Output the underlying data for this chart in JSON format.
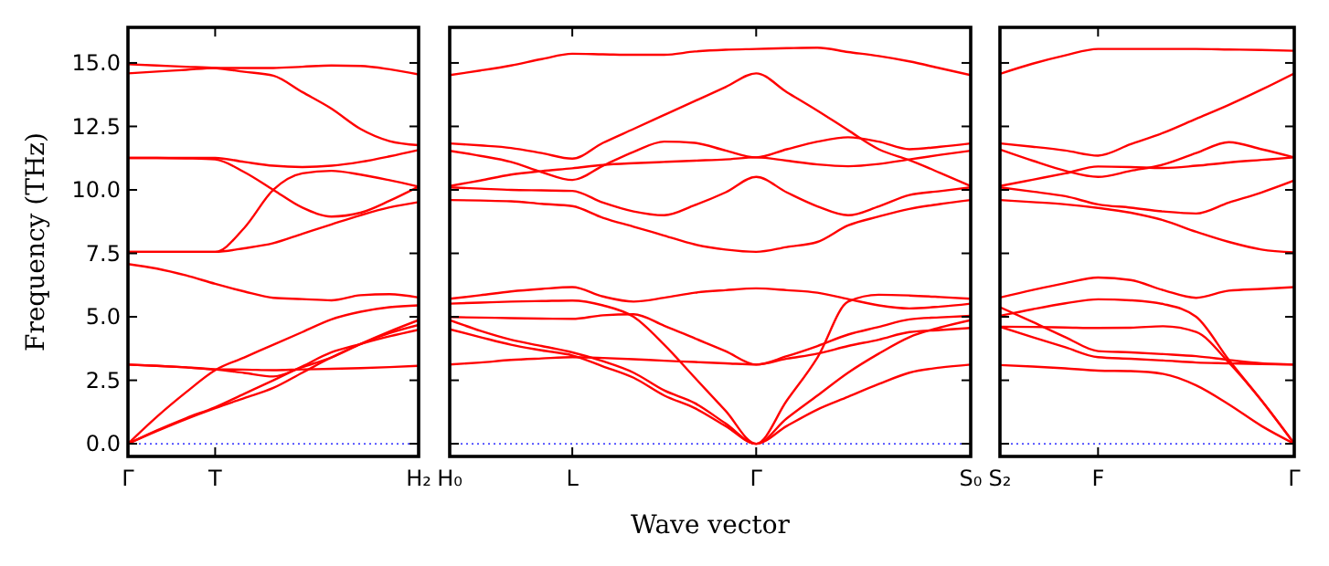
{
  "chart_data": [
    {
      "type": "line",
      "ylabel": "Frequency (THz)",
      "categories": [
        "Γ",
        null,
        null,
        "T",
        null,
        null,
        null,
        null,
        null,
        null,
        "H₂"
      ],
      "ylim": [
        -0.5,
        16.4
      ],
      "yticks": [
        {
          "value": 0,
          "label": "0.0"
        },
        {
          "value": 2.5,
          "label": "2.5"
        },
        {
          "value": 5,
          "label": "5.0"
        },
        {
          "value": 7.5,
          "label": "7.5"
        },
        {
          "value": 10,
          "label": "10.0"
        },
        {
          "value": 12.5,
          "label": "12.5"
        },
        {
          "value": 15,
          "label": "15.0"
        }
      ],
      "ref_lines": [
        {
          "axis": "y",
          "value": 0,
          "color": "#0000ff",
          "line_style": "dotted"
        }
      ],
      "series": [
        {
          "color": "#ff0000",
          "values": [
            0,
            0.53,
            1.01,
            1.44,
            1.97,
            2.5,
            3.05,
            3.6,
            3.93,
            4.23,
            4.49
          ]
        },
        {
          "color": "#ff0000",
          "values": [
            0,
            0.5,
            0.97,
            1.4,
            1.8,
            2.2,
            2.8,
            3.4,
            3.93,
            4.36,
            4.68
          ]
        },
        {
          "color": "#ff0000",
          "values": [
            0,
            1.07,
            2.03,
            2.9,
            3.4,
            3.9,
            4.4,
            4.9,
            5.2,
            5.38,
            5.45
          ]
        },
        {
          "color": "#ff0000",
          "values": [
            3.12,
            3.07,
            3.01,
            2.93,
            2.79,
            2.65,
            3.02,
            3.4,
            3.93,
            4.42,
            4.87
          ]
        },
        {
          "color": "#ff0000",
          "values": [
            3.12,
            3.07,
            3.01,
            2.93,
            2.92,
            2.9,
            2.93,
            2.95,
            2.98,
            3.02,
            3.07
          ]
        },
        {
          "color": "#ff0000",
          "values": [
            7.08,
            6.9,
            6.63,
            6.3,
            6.0,
            5.75,
            5.7,
            5.65,
            5.85,
            5.89,
            5.76
          ]
        },
        {
          "color": "#ff0000",
          "values": [
            7.56,
            7.56,
            7.56,
            7.56,
            7.7,
            7.9,
            8.27,
            8.64,
            9.0,
            9.31,
            9.52
          ]
        },
        {
          "color": "#ff0000",
          "values": [
            7.56,
            7.56,
            7.56,
            7.56,
            8.5,
            10.0,
            10.65,
            10.75,
            10.6,
            10.38,
            10.13
          ]
        },
        {
          "color": "#ff0000",
          "values": [
            11.26,
            11.26,
            11.24,
            11.2,
            10.7,
            10.0,
            9.3,
            8.95,
            9.1,
            9.57,
            10.13
          ]
        },
        {
          "color": "#ff0000",
          "values": [
            11.26,
            11.26,
            11.26,
            11.26,
            11.1,
            10.95,
            10.9,
            10.95,
            11.1,
            11.32,
            11.57
          ]
        },
        {
          "color": "#ff0000",
          "values": [
            14.59,
            14.66,
            14.73,
            14.8,
            14.8,
            14.8,
            14.85,
            14.9,
            14.88,
            14.75,
            14.55
          ]
        },
        {
          "color": "#ff0000",
          "values": [
            14.95,
            14.9,
            14.85,
            14.8,
            14.65,
            14.5,
            13.85,
            13.2,
            12.4,
            11.92,
            11.76
          ]
        }
      ]
    },
    {
      "type": "line",
      "xlabel": "Wave vector",
      "tick_labels": "x",
      "categories": [
        "H₀",
        null,
        null,
        null,
        "L",
        null,
        null,
        null,
        null,
        null,
        "Γ",
        null,
        null,
        null,
        null,
        null,
        null,
        "S₀"
      ],
      "ylim": [
        -0.5,
        16.4
      ],
      "yticks": [
        {
          "value": 0,
          "label": null
        },
        {
          "value": 2.5,
          "label": null
        },
        {
          "value": 5,
          "label": null
        },
        {
          "value": 7.5,
          "label": null
        },
        {
          "value": 10,
          "label": null
        },
        {
          "value": 12.5,
          "label": null
        },
        {
          "value": 15,
          "label": null
        }
      ],
      "ref_lines": [
        {
          "axis": "y",
          "value": 0,
          "color": "#0000ff",
          "line_style": "dotted"
        }
      ],
      "series": [
        {
          "color": "#ff0000",
          "values": [
            14.52,
            14.7,
            14.9,
            15.15,
            15.36,
            15.34,
            15.32,
            15.32,
            15.45,
            15.52,
            15.55,
            15.58,
            15.6,
            15.43,
            15.27,
            15.06,
            14.79,
            14.52
          ]
        },
        {
          "color": "#ff0000",
          "values": [
            11.83,
            11.75,
            11.65,
            11.45,
            11.23,
            11.85,
            12.4,
            12.95,
            13.5,
            14.05,
            14.59,
            13.85,
            13.12,
            12.35,
            11.6,
            11.17,
            10.67,
            10.15
          ]
        },
        {
          "color": "#ff0000",
          "values": [
            11.54,
            11.34,
            11.1,
            10.7,
            10.39,
            10.95,
            11.5,
            11.9,
            11.85,
            11.55,
            11.28,
            11.6,
            11.9,
            12.07,
            11.9,
            11.6,
            11.7,
            11.83
          ]
        },
        {
          "color": "#ff0000",
          "values": [
            10.15,
            10.37,
            10.6,
            10.74,
            10.85,
            10.98,
            11.05,
            11.1,
            11.15,
            11.2,
            11.28,
            11.15,
            11.0,
            10.93,
            11.02,
            11.2,
            11.38,
            11.54
          ]
        },
        {
          "color": "#ff0000",
          "values": [
            10.1,
            10.05,
            10.0,
            9.98,
            9.96,
            9.5,
            9.15,
            9.0,
            9.4,
            9.9,
            10.51,
            9.9,
            9.35,
            9.0,
            9.35,
            9.8,
            9.95,
            10.1
          ]
        },
        {
          "color": "#ff0000",
          "values": [
            9.6,
            9.58,
            9.55,
            9.45,
            9.36,
            8.9,
            8.55,
            8.2,
            7.85,
            7.65,
            7.56,
            7.75,
            7.95,
            8.6,
            8.95,
            9.25,
            9.44,
            9.6
          ]
        },
        {
          "color": "#ff0000",
          "values": [
            5.71,
            5.85,
            6.0,
            6.1,
            6.17,
            5.8,
            5.6,
            5.75,
            5.95,
            6.05,
            6.12,
            6.05,
            5.95,
            5.7,
            5.45,
            5.33,
            5.4,
            5.52
          ]
        },
        {
          "color": "#ff0000",
          "values": [
            5.52,
            5.56,
            5.6,
            5.62,
            5.64,
            5.45,
            5.0,
            3.9,
            2.6,
            1.3,
            0,
            1.7,
            3.4,
            5.6,
            5.87,
            5.84,
            5.78,
            5.71
          ]
        },
        {
          "color": "#ff0000",
          "values": [
            4.99,
            4.97,
            4.95,
            4.93,
            4.92,
            5.06,
            5.1,
            4.65,
            4.15,
            3.65,
            3.12,
            3.45,
            3.85,
            4.3,
            4.6,
            4.9,
            4.98,
            5.04
          ]
        },
        {
          "color": "#ff0000",
          "values": [
            4.87,
            4.45,
            4.1,
            3.85,
            3.6,
            3.25,
            2.8,
            2.1,
            1.6,
            0.8,
            0,
            1.0,
            1.9,
            2.8,
            3.55,
            4.2,
            4.58,
            4.87
          ]
        },
        {
          "color": "#ff0000",
          "values": [
            4.51,
            4.2,
            3.9,
            3.68,
            3.48,
            3.05,
            2.6,
            1.9,
            1.4,
            0.7,
            0,
            0.7,
            1.35,
            1.85,
            2.35,
            2.8,
            3.0,
            3.12
          ]
        },
        {
          "color": "#ff0000",
          "values": [
            3.12,
            3.2,
            3.3,
            3.36,
            3.41,
            3.38,
            3.33,
            3.27,
            3.22,
            3.17,
            3.12,
            3.35,
            3.55,
            3.85,
            4.1,
            4.4,
            4.48,
            4.56
          ]
        }
      ]
    },
    {
      "type": "line",
      "tick_labels": "x",
      "categories": [
        "S₂",
        null,
        null,
        "F",
        null,
        null,
        null,
        null,
        null,
        "Γ"
      ],
      "ylim": [
        -0.5,
        16.4
      ],
      "yticks": [
        {
          "value": 0,
          "label": null
        },
        {
          "value": 2.5,
          "label": null
        },
        {
          "value": 5,
          "label": null
        },
        {
          "value": 7.5,
          "label": null
        },
        {
          "value": 10,
          "label": null
        },
        {
          "value": 12.5,
          "label": null
        },
        {
          "value": 15,
          "label": null
        }
      ],
      "ref_lines": [
        {
          "axis": "y",
          "value": 0,
          "color": "#0000ff",
          "line_style": "dotted"
        }
      ],
      "series": [
        {
          "color": "#ff0000",
          "values": [
            14.57,
            14.97,
            15.3,
            15.55,
            15.55,
            15.55,
            15.55,
            15.53,
            15.51,
            15.48
          ]
        },
        {
          "color": "#ff0000",
          "values": [
            11.83,
            11.7,
            11.55,
            11.35,
            11.8,
            12.25,
            12.8,
            13.35,
            13.95,
            14.59
          ]
        },
        {
          "color": "#ff0000",
          "values": [
            11.59,
            11.15,
            10.75,
            10.51,
            10.75,
            11.0,
            11.45,
            11.88,
            11.6,
            11.28
          ]
        },
        {
          "color": "#ff0000",
          "values": [
            10.15,
            10.4,
            10.65,
            10.92,
            10.9,
            10.86,
            10.95,
            11.08,
            11.18,
            11.28
          ]
        },
        {
          "color": "#ff0000",
          "values": [
            10.1,
            9.93,
            9.75,
            9.43,
            9.3,
            9.15,
            9.07,
            9.5,
            9.9,
            10.37
          ]
        },
        {
          "color": "#ff0000",
          "values": [
            9.6,
            9.52,
            9.43,
            9.29,
            9.1,
            8.8,
            8.35,
            7.95,
            7.65,
            7.54
          ]
        },
        {
          "color": "#ff0000",
          "values": [
            5.76,
            6.06,
            6.33,
            6.55,
            6.45,
            6.05,
            5.75,
            6.03,
            6.1,
            6.17
          ]
        },
        {
          "color": "#ff0000",
          "values": [
            5.04,
            5.3,
            5.53,
            5.69,
            5.65,
            5.5,
            5.0,
            3.3,
            1.7,
            0
          ]
        },
        {
          "color": "#ff0000",
          "values": [
            5.38,
            4.8,
            4.2,
            3.65,
            3.6,
            3.53,
            3.45,
            3.3,
            3.17,
            3.12
          ]
        },
        {
          "color": "#ff0000",
          "values": [
            4.61,
            4.6,
            4.58,
            4.56,
            4.57,
            4.63,
            4.4,
            3.2,
            1.7,
            0
          ]
        },
        {
          "color": "#ff0000",
          "values": [
            4.61,
            4.2,
            3.8,
            3.41,
            3.35,
            3.28,
            3.2,
            3.17,
            3.14,
            3.12
          ]
        },
        {
          "color": "#ff0000",
          "values": [
            3.1,
            3.04,
            2.97,
            2.88,
            2.86,
            2.75,
            2.3,
            1.55,
            0.7,
            0
          ]
        }
      ]
    }
  ]
}
